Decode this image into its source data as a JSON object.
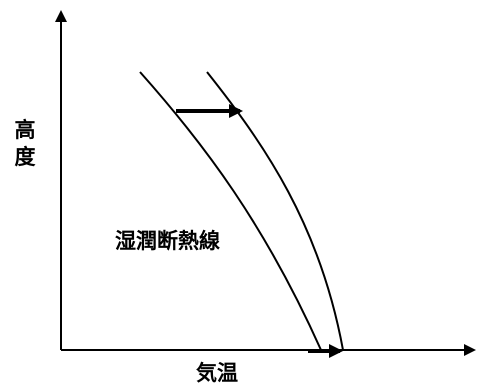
{
  "diagram": {
    "y_axis_label": [
      "高",
      "度"
    ],
    "x_axis_label": "気温",
    "curve_label": "湿潤断熱線"
  }
}
